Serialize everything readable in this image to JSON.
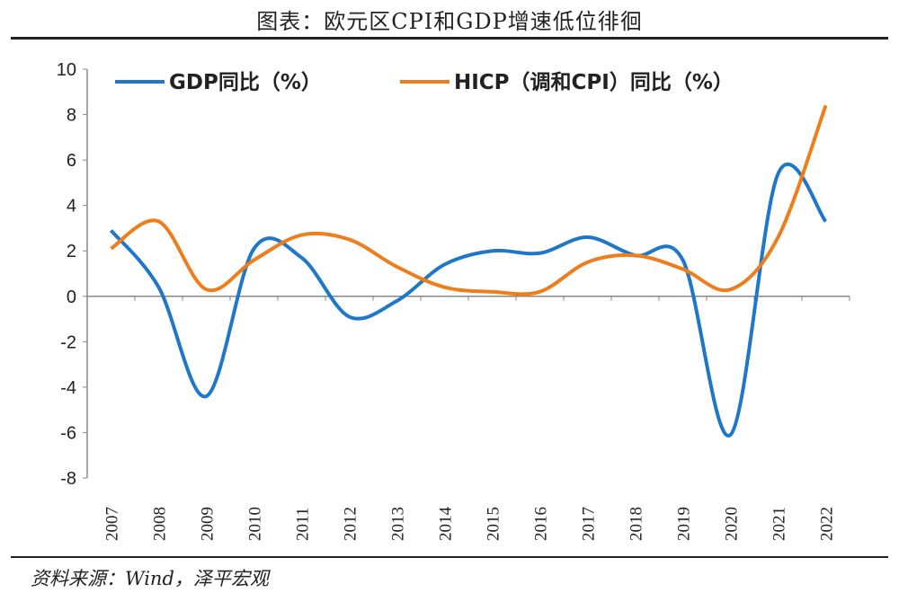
{
  "title": "图表：欧元区CPI和GDP增速低位徘徊",
  "source": "资料来源：Wind，泽平宏观",
  "chart_data": {
    "type": "line",
    "categories": [
      "2007",
      "2008",
      "2009",
      "2010",
      "2011",
      "2012",
      "2013",
      "2014",
      "2015",
      "2016",
      "2017",
      "2018",
      "2019",
      "2020",
      "2021",
      "2022"
    ],
    "ylim": [
      -8,
      10
    ],
    "yticks": [
      -8,
      -6,
      -4,
      -2,
      0,
      2,
      4,
      6,
      8,
      10
    ],
    "legend_position": "top",
    "grid": false,
    "series": [
      {
        "name": "GDP同比（%）",
        "color": "#1f77c9",
        "values": [
          2.9,
          0.4,
          -4.4,
          2.1,
          1.7,
          -0.9,
          -0.2,
          1.4,
          2.0,
          1.9,
          2.6,
          1.8,
          1.6,
          -6.1,
          5.4,
          3.3
        ]
      },
      {
        "name": "HICP（调和CPI）同比（%）",
        "color": "#ee7d1c",
        "values": [
          2.1,
          3.3,
          0.3,
          1.6,
          2.7,
          2.5,
          1.3,
          0.4,
          0.2,
          0.2,
          1.5,
          1.8,
          1.2,
          0.3,
          2.6,
          8.4
        ]
      }
    ]
  }
}
